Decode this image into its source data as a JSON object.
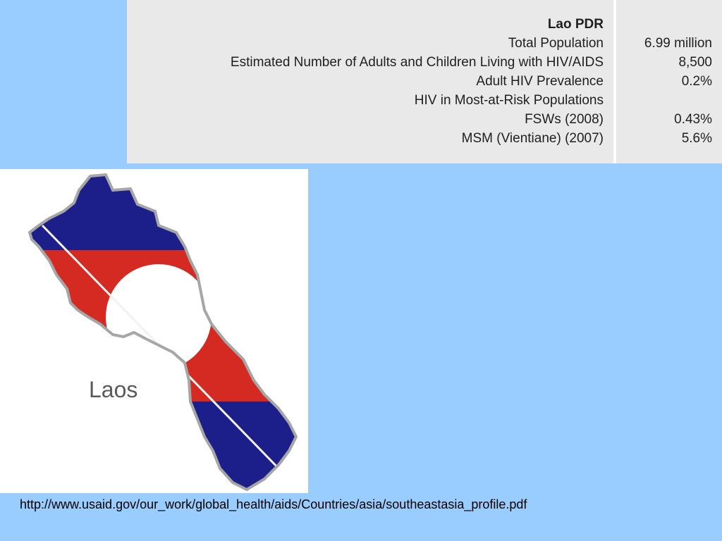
{
  "table": {
    "header_label": "Lao PDR",
    "rows": [
      {
        "label": "Total Population",
        "value": "6.99 million"
      },
      {
        "label": "Estimated Number of Adults and Children Living with HIV/AIDS",
        "value": "8,500"
      },
      {
        "label": "Adult HIV Prevalence",
        "value": "0.2%"
      },
      {
        "label": "HIV in Most-at-Risk Populations",
        "value": ""
      },
      {
        "label": "FSWs (2008)",
        "value": "0.43%"
      },
      {
        "label": "MSM (Vientiane) (2007)",
        "value": "5.6%"
      }
    ]
  },
  "map": {
    "label": "Laos",
    "colors": {
      "blue": "#1c1f8a",
      "red": "#d42a22",
      "white": "#ffffff",
      "border": "#a6a6a6"
    }
  },
  "source": {
    "url_text": "http://www.usaid.gov/our_work/global_health/aids/Countries/asia/southeastasia_profile.pdf"
  },
  "colors": {
    "background": "#99ccff",
    "table_bg": "#e9e9e9"
  }
}
